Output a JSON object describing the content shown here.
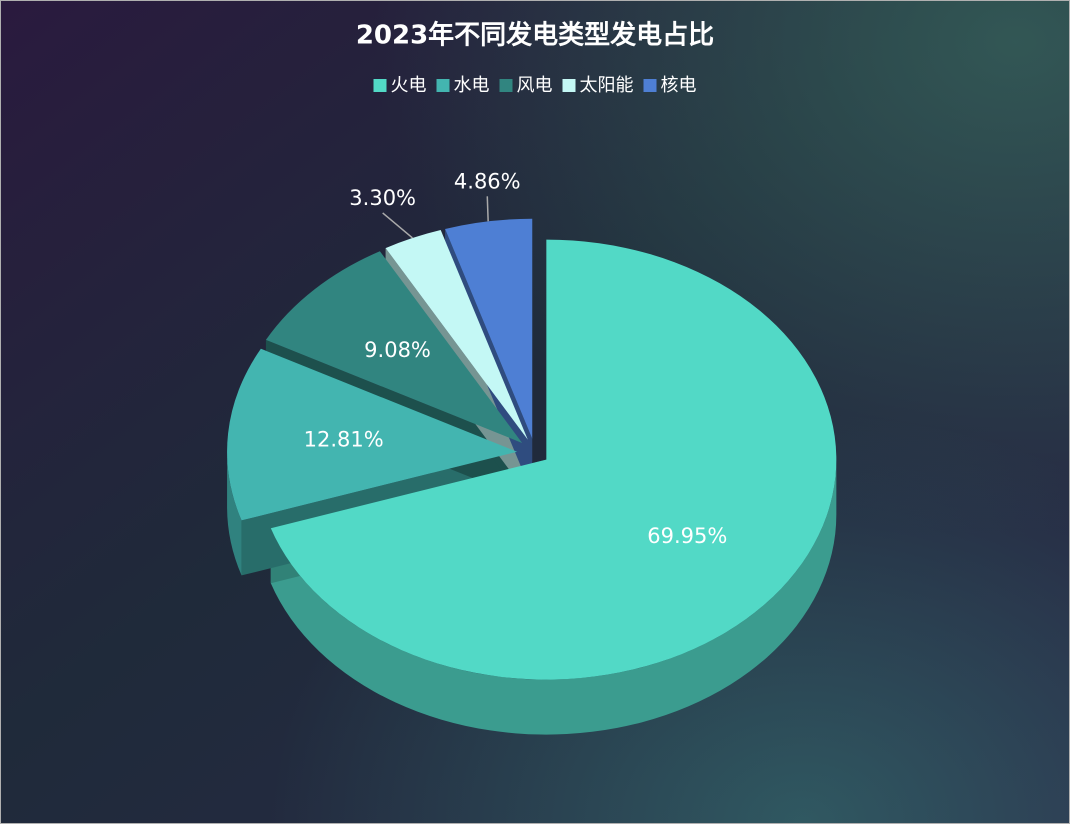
{
  "chart_data": {
    "type": "pie3d",
    "title": "2023年不同发电类型发电占比",
    "categories": [
      "火电",
      "水电",
      "风电",
      "太阳能",
      "核电"
    ],
    "values": [
      69.95,
      12.81,
      9.08,
      3.3,
      4.86
    ],
    "value_labels": [
      "69.95%",
      "12.81%",
      "9.08%",
      "3.30%",
      "4.86%"
    ],
    "colors": [
      "#52d9c6",
      "#43b5b0",
      "#318580",
      "#c4f8f5",
      "#4e7fd4"
    ],
    "legend": "top"
  }
}
